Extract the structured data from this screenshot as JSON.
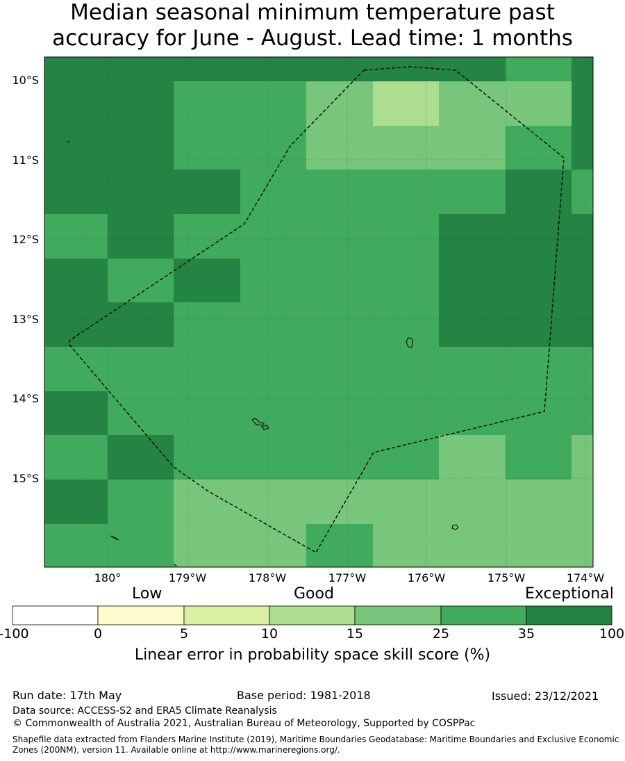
{
  "title": {
    "line1": "Median seasonal minimum temperature past",
    "line2": "accuracy for June - August. Lead time: 1 months"
  },
  "map": {
    "lat_labels": [
      "10°S",
      "11°S",
      "12°S",
      "13°S",
      "14°S",
      "15°S"
    ],
    "lon_labels": [
      "180°",
      "179°W",
      "178°W",
      "177°W",
      "176°W",
      "175°W",
      "174°W"
    ],
    "colors": {
      "c0": "#ffffff",
      "c1": "#fffccc",
      "c2": "#d9f0a3",
      "c3": "#addd8e",
      "c4": "#78c679",
      "c5": "#41ab5d",
      "c6": "#238443"
    },
    "grid_category_rows": [
      [
        6,
        6,
        6,
        6,
        6,
        6,
        6,
        5,
        6
      ],
      [
        6,
        6,
        5,
        5,
        4,
        3,
        4,
        4,
        6
      ],
      [
        6,
        6,
        5,
        5,
        4,
        4,
        4,
        5,
        6
      ],
      [
        6,
        6,
        6,
        5,
        5,
        5,
        5,
        6,
        5
      ],
      [
        5,
        6,
        5,
        5,
        5,
        5,
        6,
        6,
        6
      ],
      [
        6,
        5,
        6,
        5,
        5,
        5,
        6,
        6,
        6
      ],
      [
        6,
        6,
        5,
        5,
        5,
        5,
        6,
        6,
        6
      ],
      [
        5,
        5,
        5,
        5,
        5,
        5,
        5,
        5,
        5
      ],
      [
        6,
        5,
        5,
        5,
        5,
        5,
        5,
        5,
        5
      ],
      [
        5,
        6,
        5,
        5,
        5,
        5,
        4,
        5,
        4
      ],
      [
        6,
        5,
        4,
        4,
        4,
        4,
        4,
        4,
        4
      ],
      [
        5,
        5,
        4,
        4,
        5,
        4,
        4,
        4,
        4
      ]
    ],
    "boundary": "dashed maritime boundary (200NM EEZ)"
  },
  "colorbar": {
    "category_labels": [
      "Low",
      "Good",
      "Exceptional"
    ],
    "ticks": [
      "-100",
      "0",
      "5",
      "10",
      "15",
      "25",
      "35",
      "100"
    ],
    "title": "Linear error in probability space skill score (%)"
  },
  "footer": {
    "run_date": "Run date: 17th May",
    "base_period": "Base period: 1981-2018",
    "issued": "Issued: 23/12/2021",
    "data_source": "Data source: ACCESS-S2 and ERA5 Climate Reanalysis",
    "copyright": "© Commonwealth of Australia 2021, Australian Bureau of Meteorology, Supported by COSPPac",
    "shapefile": "Shapefile data extracted from Flanders Marine Institute (2019), Maritime Boundaries Geodatabase: Maritime Boundaries and Exclusive Economic Zones (200NM), version 11. Available online at http://www.marineregions.org/."
  }
}
